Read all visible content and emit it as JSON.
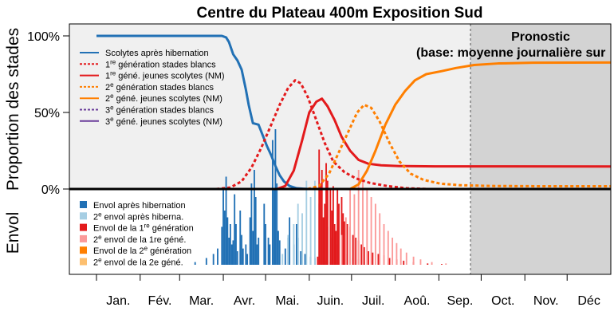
{
  "chart_data": {
    "type": "line",
    "title": "Centre du Plateau 400m Exposition Sud",
    "ylabel_top": "Proportion des stades",
    "ylabel_bottom": "Envol",
    "yticks": [
      "100%",
      "50%",
      "0%"
    ],
    "ylim": [
      0,
      1.08
    ],
    "months": [
      "Jan.",
      "Fév.",
      "Mar.",
      "Avr.",
      "Mai.",
      "Juin.",
      "Juil.",
      "Aoû.",
      "Sep.",
      "Oct.",
      "Nov.",
      "Déc"
    ],
    "forecast": {
      "start_day": 255,
      "label_line1": "Pronostic",
      "label_line2": "(base: moyenne journalière sur"
    },
    "series": [
      {
        "name": "Scolytes après hibernation",
        "color": "#2271b5",
        "dash": "solid",
        "points": [
          [
            0,
            1.0
          ],
          [
            89,
            1.0
          ],
          [
            92,
            0.99
          ],
          [
            94,
            0.96
          ],
          [
            97,
            0.88
          ],
          [
            100,
            0.84
          ],
          [
            103,
            0.78
          ],
          [
            106,
            0.65
          ],
          [
            108,
            0.55
          ],
          [
            111,
            0.43
          ],
          [
            115,
            0.42
          ],
          [
            118,
            0.35
          ],
          [
            121,
            0.28
          ],
          [
            124,
            0.22
          ],
          [
            127,
            0.15
          ],
          [
            130,
            0.09
          ],
          [
            133,
            0.05
          ],
          [
            137,
            0.02
          ],
          [
            142,
            0.005
          ],
          [
            150,
            0.0
          ],
          [
            365,
            0.0
          ]
        ]
      },
      {
        "name": "1re génération stades blancs",
        "color": "#e31a1c",
        "dash": "4,3",
        "points": [
          [
            85,
            0.0
          ],
          [
            95,
            0.01
          ],
          [
            103,
            0.05
          ],
          [
            110,
            0.14
          ],
          [
            117,
            0.27
          ],
          [
            124,
            0.42
          ],
          [
            130,
            0.55
          ],
          [
            136,
            0.66
          ],
          [
            141,
            0.71
          ],
          [
            145,
            0.69
          ],
          [
            150,
            0.6
          ],
          [
            156,
            0.45
          ],
          [
            162,
            0.3
          ],
          [
            168,
            0.18
          ],
          [
            176,
            0.11
          ],
          [
            184,
            0.07
          ],
          [
            194,
            0.04
          ],
          [
            206,
            0.02
          ],
          [
            220,
            0.005
          ],
          [
            235,
            0.0
          ],
          [
            365,
            0.0
          ]
        ]
      },
      {
        "name": "1re géné. jeunes scolytes (NM)",
        "color": "#e31a1c",
        "dash": "solid",
        "points": [
          [
            0,
            0.0
          ],
          [
            128,
            0.0
          ],
          [
            134,
            0.02
          ],
          [
            140,
            0.12
          ],
          [
            146,
            0.32
          ],
          [
            151,
            0.5
          ],
          [
            156,
            0.57
          ],
          [
            160,
            0.59
          ],
          [
            164,
            0.54
          ],
          [
            169,
            0.45
          ],
          [
            174,
            0.34
          ],
          [
            180,
            0.25
          ],
          [
            186,
            0.19
          ],
          [
            193,
            0.165
          ],
          [
            202,
            0.155
          ],
          [
            215,
            0.15
          ],
          [
            240,
            0.148
          ],
          [
            365,
            0.147
          ]
        ]
      },
      {
        "name": "2e génération stades blancs",
        "color": "#ff7f00",
        "dash": "4,3",
        "points": [
          [
            150,
            0.0
          ],
          [
            158,
            0.02
          ],
          [
            165,
            0.1
          ],
          [
            172,
            0.24
          ],
          [
            179,
            0.38
          ],
          [
            185,
            0.5
          ],
          [
            190,
            0.55
          ],
          [
            195,
            0.53
          ],
          [
            201,
            0.44
          ],
          [
            208,
            0.3
          ],
          [
            215,
            0.18
          ],
          [
            223,
            0.1
          ],
          [
            232,
            0.06
          ],
          [
            244,
            0.035
          ],
          [
            258,
            0.025
          ],
          [
            280,
            0.02
          ],
          [
            320,
            0.018
          ],
          [
            365,
            0.018
          ]
        ]
      },
      {
        "name": "2e géné. jeunes scolytes (NM)",
        "color": "#ff7f00",
        "dash": "solid",
        "points": [
          [
            0,
            0.0
          ],
          [
            180,
            0.0
          ],
          [
            186,
            0.03
          ],
          [
            192,
            0.12
          ],
          [
            198,
            0.25
          ],
          [
            205,
            0.42
          ],
          [
            212,
            0.55
          ],
          [
            219,
            0.64
          ],
          [
            226,
            0.71
          ],
          [
            234,
            0.75
          ],
          [
            245,
            0.77
          ],
          [
            255,
            0.79
          ],
          [
            268,
            0.81
          ],
          [
            285,
            0.82
          ],
          [
            310,
            0.825
          ],
          [
            365,
            0.826
          ]
        ]
      },
      {
        "name": "3e génération stades blancs",
        "color": "#6a3d9a",
        "dash": "4,3",
        "points": []
      },
      {
        "name": "3e géné. jeunes scolytes (NM)",
        "color": "#6a3d9a",
        "dash": "solid",
        "points": []
      }
    ],
    "flight_legend": [
      {
        "name": "Envol après hibernation",
        "color": "#2271b5"
      },
      {
        "name": "2e envol après hiberna.",
        "color": "#a6cee3"
      },
      {
        "name": "Envol de la 1re génération",
        "color": "#e31a1c"
      },
      {
        "name": "2e envol de la 1re géné.",
        "color": "#fb9a99"
      },
      {
        "name": "Envol de la 2e génération",
        "color": "#ff7f00"
      },
      {
        "name": "2e envol de la 2e géné.",
        "color": "#fdbf6f"
      }
    ],
    "flight_daily": {
      "Envol après hibernation": [
        [
          70,
          0.02
        ],
        [
          78,
          0.05
        ],
        [
          83,
          0.08
        ],
        [
          86,
          0.12
        ],
        [
          89,
          0.28
        ],
        [
          90,
          0.55
        ],
        [
          91,
          0.4
        ],
        [
          92,
          0.65
        ],
        [
          93,
          0.35
        ],
        [
          94,
          0.2
        ],
        [
          95,
          0.3
        ],
        [
          96,
          0.15
        ],
        [
          97,
          0.18
        ],
        [
          98,
          0.52
        ],
        [
          99,
          0.3
        ],
        [
          100,
          0.1
        ],
        [
          102,
          0.4
        ],
        [
          103,
          0.22
        ],
        [
          104,
          0.12
        ],
        [
          106,
          0.15
        ],
        [
          107,
          0.08
        ],
        [
          109,
          0.35
        ],
        [
          110,
          0.6
        ],
        [
          111,
          0.25
        ],
        [
          112,
          0.7
        ],
        [
          113,
          0.5
        ],
        [
          114,
          0.15
        ],
        [
          115,
          0.2
        ],
        [
          119,
          0.45
        ],
        [
          120,
          0.3
        ],
        [
          122,
          0.2
        ],
        [
          123,
          0.15
        ],
        [
          125,
          0.92
        ],
        [
          126,
          0.55
        ],
        [
          127,
          1.0
        ],
        [
          128,
          0.6
        ],
        [
          129,
          0.25
        ],
        [
          130,
          0.18
        ],
        [
          134,
          0.12
        ],
        [
          136,
          0.2
        ],
        [
          137,
          0.35
        ],
        [
          140,
          0.15
        ],
        [
          142,
          0.3
        ],
        [
          143,
          0.2
        ],
        [
          145,
          0.1
        ],
        [
          148,
          0.08
        ],
        [
          152,
          0.06
        ],
        [
          155,
          0.05
        ],
        [
          158,
          0.04
        ],
        [
          162,
          0.03
        ],
        [
          166,
          0.02
        ]
      ],
      "2e envol après hiberna.": [
        [
          132,
          0.08
        ],
        [
          136,
          0.22
        ],
        [
          140,
          0.3
        ],
        [
          143,
          0.45
        ],
        [
          146,
          0.38
        ],
        [
          149,
          0.62
        ],
        [
          152,
          0.5
        ],
        [
          155,
          0.62
        ],
        [
          158,
          0.45
        ],
        [
          161,
          0.35
        ],
        [
          164,
          0.28
        ],
        [
          167,
          0.2
        ],
        [
          170,
          0.15
        ],
        [
          174,
          0.1
        ],
        [
          178,
          0.08
        ],
        [
          182,
          0.05
        ],
        [
          186,
          0.04
        ],
        [
          190,
          0.02
        ]
      ],
      "Envol de la 1re génération": [
        [
          157,
          0.06
        ],
        [
          158,
          0.85
        ],
        [
          159,
          0.6
        ],
        [
          160,
          0.7
        ],
        [
          161,
          0.35
        ],
        [
          162,
          0.45
        ],
        [
          163,
          0.75
        ],
        [
          164,
          0.62
        ],
        [
          166,
          0.55
        ],
        [
          167,
          0.4
        ],
        [
          168,
          0.58
        ],
        [
          169,
          0.3
        ],
        [
          170,
          0.25
        ],
        [
          171,
          0.55
        ],
        [
          172,
          0.45
        ],
        [
          174,
          0.5
        ],
        [
          175,
          0.38
        ],
        [
          176,
          0.32
        ],
        [
          178,
          0.3
        ],
        [
          180,
          0.28
        ],
        [
          182,
          0.22
        ],
        [
          184,
          0.2
        ],
        [
          186,
          0.18
        ],
        [
          188,
          0.15
        ],
        [
          190,
          0.13
        ],
        [
          193,
          0.1
        ],
        [
          196,
          0.09
        ],
        [
          200,
          0.08
        ],
        [
          204,
          0.07
        ],
        [
          208,
          0.05
        ],
        [
          213,
          0.04
        ],
        [
          218,
          0.03
        ],
        [
          225,
          0.02
        ],
        [
          235,
          0.01
        ],
        [
          245,
          0.005
        ]
      ],
      "2e envol de la 1re géné.": [
        [
          174,
          0.22
        ],
        [
          177,
          0.35
        ],
        [
          180,
          0.55
        ],
        [
          183,
          0.52
        ],
        [
          186,
          0.7
        ],
        [
          189,
          0.62
        ],
        [
          192,
          0.55
        ],
        [
          195,
          0.5
        ],
        [
          198,
          0.45
        ],
        [
          201,
          0.38
        ],
        [
          204,
          0.3
        ],
        [
          207,
          0.25
        ],
        [
          210,
          0.2
        ],
        [
          213,
          0.16
        ],
        [
          216,
          0.12
        ],
        [
          220,
          0.09
        ],
        [
          225,
          0.06
        ],
        [
          230,
          0.04
        ],
        [
          238,
          0.02
        ],
        [
          248,
          0.01
        ]
      ],
      "Envol de la 2e génération": [],
      "2e envol de la 2e géné.": []
    }
  }
}
